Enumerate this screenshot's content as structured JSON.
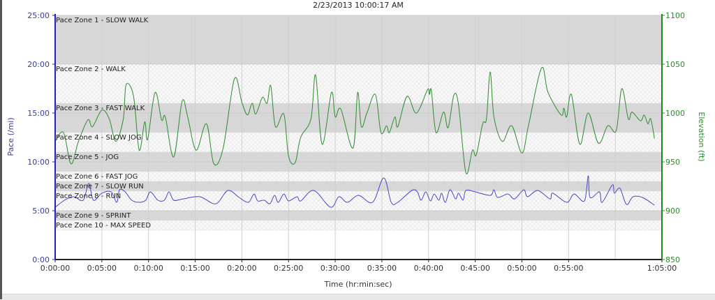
{
  "chart_data": {
    "type": "line",
    "title": "2/23/2013 10:00:17 AM",
    "xlabel": "Time (hr:min:sec)",
    "ylabel": "Pace (/mi)",
    "y2label": "Elevation (ft)",
    "xlim": [
      0,
      65
    ],
    "ylim": [
      0,
      25
    ],
    "y2lim": [
      850,
      1100
    ],
    "grid": true,
    "x_ticks": [
      {
        "v": 0,
        "label": "0:00:00"
      },
      {
        "v": 5,
        "label": "0:05:00"
      },
      {
        "v": 10,
        "label": "0:10:00"
      },
      {
        "v": 15,
        "label": "0:15:00"
      },
      {
        "v": 20,
        "label": "0:20:00"
      },
      {
        "v": 25,
        "label": "0:25:00"
      },
      {
        "v": 30,
        "label": "0:30:00"
      },
      {
        "v": 35,
        "label": "0:35:00"
      },
      {
        "v": 40,
        "label": "0:40:00"
      },
      {
        "v": 45,
        "label": "0:45:00"
      },
      {
        "v": 50,
        "label": "0:50:00"
      },
      {
        "v": 55,
        "label": "0:55:00"
      },
      {
        "v": 65,
        "label": "1:05:00"
      }
    ],
    "y_ticks": [
      {
        "v": 0,
        "label": "0:00"
      },
      {
        "v": 5,
        "label": "5:00"
      },
      {
        "v": 10,
        "label": "10:00"
      },
      {
        "v": 15,
        "label": "15:00"
      },
      {
        "v": 20,
        "label": "20:00"
      },
      {
        "v": 25,
        "label": "25:00"
      }
    ],
    "y2_ticks": [
      {
        "v": 850,
        "label": "850"
      },
      {
        "v": 900,
        "label": "900"
      },
      {
        "v": 950,
        "label": "950"
      },
      {
        "v": 1000,
        "label": "1000"
      },
      {
        "v": 1050,
        "label": "1050"
      },
      {
        "v": 1100,
        "label": "1100"
      }
    ],
    "zones": [
      {
        "label": "Pace Zone 1 - SLOW WALK",
        "from": 20,
        "to": 25,
        "style": "solid"
      },
      {
        "label": "Pace Zone 2 - WALK",
        "from": 16,
        "to": 20,
        "style": "hatch"
      },
      {
        "label": "Pace Zone 3 - FAST WALK",
        "from": 13,
        "to": 16,
        "style": "solid"
      },
      {
        "label": "Pace Zone 4 - SLOW JOG",
        "from": 11,
        "to": 13,
        "style": "hatch"
      },
      {
        "label": "Pace Zone 5 - JOG",
        "from": 9,
        "to": 11,
        "style": "solid"
      },
      {
        "label": "Pace Zone 6 - FAST JOG",
        "from": 8,
        "to": 9,
        "style": "hatch"
      },
      {
        "label": "Pace Zone 7 - SLOW RUN",
        "from": 7,
        "to": 8,
        "style": "solid"
      },
      {
        "label": "Pace Zone 8 - RUN",
        "from": 5,
        "to": 7,
        "style": "hatch"
      },
      {
        "label": "Pace Zone 9 - SPRINT",
        "from": 4,
        "to": 5,
        "style": "solid"
      },
      {
        "label": "Pace Zone 10 - MAX SPEED",
        "from": 3,
        "to": 4,
        "style": "hatch"
      }
    ],
    "series": [
      {
        "name": "Pace",
        "axis": "left",
        "color": "#4848c8",
        "x": [
          0,
          1,
          2,
          3,
          3.6,
          4.1,
          5,
          6,
          6.6,
          6.9,
          7.5,
          8.2,
          9,
          9.7,
          10.2,
          11,
          11.7,
          12.2,
          12.7,
          13.7,
          15.5,
          17.2,
          18.5,
          19.7,
          20.7,
          21.3,
          21.7,
          22.4,
          23,
          23.5,
          23.9,
          24.5,
          25,
          25.9,
          26.3,
          27.7,
          29.5,
          30.4,
          31.3,
          32.5,
          34,
          35.2,
          36,
          36.7,
          38.2,
          38.8,
          39.2,
          39.7,
          40.2,
          40.6,
          41.1,
          41.4,
          41.8,
          42.3,
          42.9,
          43.2,
          43.7,
          44,
          45,
          46.6,
          47,
          47.4,
          48.5,
          49.2,
          50.2,
          50.6,
          51.7,
          53,
          53.3,
          54.8,
          55.6,
          56.7,
          57.1,
          57.3,
          58.3,
          58.6,
          59.7,
          59.9,
          60.5,
          61.2,
          61.9,
          62.9,
          64.2
        ],
        "values": [
          5.36,
          6.07,
          6.43,
          6.07,
          7.79,
          6.07,
          6.79,
          6.93,
          5.86,
          7.14,
          6.93,
          6.07,
          5.86,
          6.07,
          6.93,
          6.07,
          6.07,
          6.93,
          6.07,
          6.21,
          6.43,
          5.71,
          7.07,
          6.36,
          5.86,
          6.71,
          6.0,
          6.07,
          5.71,
          6.57,
          5.86,
          6.71,
          6.0,
          6.43,
          6.0,
          7.07,
          5.36,
          6.43,
          5.86,
          6.57,
          5.86,
          8.36,
          5.86,
          5.86,
          7.07,
          6.93,
          6.07,
          6.93,
          6.0,
          6.71,
          6.07,
          6.79,
          5.86,
          7.14,
          6.21,
          6.79,
          6.07,
          7.07,
          6.93,
          6.57,
          7.14,
          6.36,
          6.71,
          6.21,
          7.14,
          6.43,
          7.07,
          6.21,
          6.79,
          5.86,
          6.71,
          6.0,
          8.57,
          6.36,
          6.93,
          5.86,
          7.64,
          6.79,
          7.29,
          5.64,
          6.43,
          6.36,
          5.57
        ]
      },
      {
        "name": "Elevation",
        "axis": "right",
        "color": "#2e8b2e",
        "x": [
          0,
          0.9,
          1.7,
          2.5,
          3.5,
          4,
          5,
          5.8,
          6.5,
          7.3,
          7.6,
          8.4,
          9,
          9.6,
          9.9,
          10.7,
          11.4,
          11.8,
          12.7,
          13.6,
          14.2,
          15.1,
          16.2,
          17,
          18,
          19.2,
          20,
          20.6,
          21.1,
          21.5,
          22.2,
          22.7,
          23.1,
          23.6,
          24.5,
          25,
          25.7,
          26.3,
          27.4,
          27.9,
          28.6,
          29.6,
          30,
          30.6,
          31.9,
          32.4,
          32.8,
          33.4,
          34.3,
          34.9,
          35.5,
          35.8,
          36.4,
          36.7,
          37.7,
          38.7,
          39.9,
          40.1,
          40.3,
          40.8,
          41.6,
          42.1,
          42.7,
          43.2,
          44,
          44.7,
          45.1,
          45.8,
          46.2,
          46.6,
          47,
          47.9,
          48.9,
          50,
          50.7,
          52.1,
          52.8,
          54.2,
          54.5,
          54.8,
          55.3,
          56.2,
          57.1,
          58.2,
          59.2,
          60.1,
          60.7,
          61.4,
          61.8,
          62.7,
          63.1,
          63.5,
          63.8,
          64.2
        ],
        "values": [
          971,
          980,
          948,
          971,
          993,
          986,
          1003,
          994,
          971,
          994,
          1029,
          1017,
          962,
          991,
          973,
          1021,
          993,
          996,
          955,
          1012,
          996,
          962,
          989,
          948,
          964,
          1035,
          1011,
          998,
          1010,
          999,
          1016,
          1010,
          1028,
          986,
          999,
          956,
          949,
          975,
          994,
          1039,
          968,
          1021,
          996,
          1004,
          964,
          1021,
          986,
          1000,
          1019,
          980,
          987,
          980,
          996,
          986,
          1017,
          1000,
          1024,
          1019,
          1023,
          980,
          1001,
          985,
          1018,
          1009,
          939,
          962,
          957,
          989,
          994,
          1042,
          996,
          971,
          987,
          959,
          987,
          1046,
          1021,
          998,
          1005,
          996,
          1019,
          968,
          1000,
          969,
          987,
          982,
          1025,
          994,
          1001,
          992,
          998,
          989,
          994,
          974
        ]
      }
    ]
  }
}
